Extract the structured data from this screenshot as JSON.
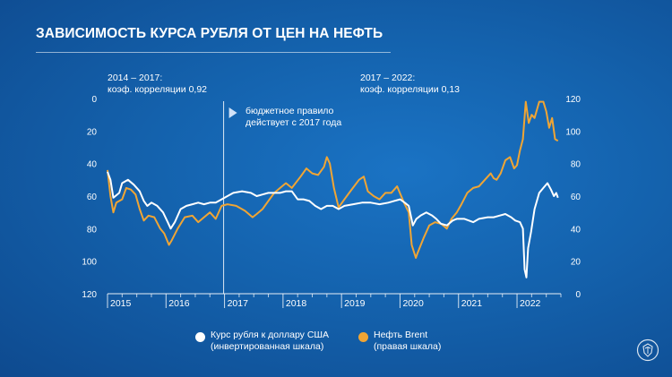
{
  "title": "ЗАВИСИМОСТЬ КУРСА РУБЛЯ ОТ ЦЕН НА НЕФТЬ",
  "annotations": {
    "left_period": "2014 – 2017:",
    "left_corr": "коэф. корреляции 0,92",
    "right_period": "2017 – 2022:",
    "right_corr": "коэф. корреляции 0,13",
    "rule_line1": "бюджетное правило",
    "rule_line2": "действует с 2017 года"
  },
  "legend": {
    "series1_line1": "Курс рубля к доллару США",
    "series1_line2": "(инвертированная шкала)",
    "series2_line1": "Нефть Brent",
    "series2_line2": "(правая шкала)"
  },
  "colors": {
    "usdrub": "#ffffff",
    "brent": "#f0a534",
    "background": "#1462ad"
  },
  "chart_data": {
    "type": "line",
    "title": "ЗАВИСИМОСТЬ КУРСА РУБЛЯ ОТ ЦЕН НА НЕФТЬ",
    "x_tick_labels": [
      "2015",
      "2016",
      "2017",
      "2018",
      "2019",
      "2020",
      "2021",
      "2022"
    ],
    "x_range": [
      2015.0,
      2022.75
    ],
    "left_axis": {
      "ylim": [
        0,
        120
      ],
      "inverted": true,
      "ticks": [
        "0",
        "20",
        "40",
        "60",
        "80",
        "100",
        "120"
      ]
    },
    "right_axis": {
      "ylim": [
        0,
        120
      ],
      "inverted": false,
      "ticks": [
        "0",
        "20",
        "40",
        "60",
        "80",
        "100",
        "120"
      ]
    },
    "vertical_marker_x": 2017.0,
    "grid": false,
    "legend_position": "bottom",
    "series": [
      {
        "name": "Курс рубля к доллару США",
        "axis": "left",
        "points": [
          [
            2015.0,
            45
          ],
          [
            2015.05,
            50
          ],
          [
            2015.1,
            61
          ],
          [
            2015.2,
            58
          ],
          [
            2015.25,
            52
          ],
          [
            2015.35,
            50
          ],
          [
            2015.45,
            53
          ],
          [
            2015.55,
            57
          ],
          [
            2015.62,
            63
          ],
          [
            2015.68,
            66
          ],
          [
            2015.75,
            64
          ],
          [
            2015.85,
            66
          ],
          [
            2015.95,
            70
          ],
          [
            2016.03,
            76
          ],
          [
            2016.08,
            80
          ],
          [
            2016.15,
            76
          ],
          [
            2016.25,
            68
          ],
          [
            2016.35,
            66
          ],
          [
            2016.45,
            65
          ],
          [
            2016.55,
            64
          ],
          [
            2016.65,
            65
          ],
          [
            2016.75,
            64
          ],
          [
            2016.85,
            64
          ],
          [
            2016.95,
            62
          ],
          [
            2017.05,
            60
          ],
          [
            2017.15,
            58
          ],
          [
            2017.3,
            57
          ],
          [
            2017.45,
            58
          ],
          [
            2017.55,
            60
          ],
          [
            2017.65,
            59
          ],
          [
            2017.75,
            58
          ],
          [
            2017.85,
            58
          ],
          [
            2017.95,
            58
          ],
          [
            2018.05,
            57
          ],
          [
            2018.15,
            57
          ],
          [
            2018.25,
            62
          ],
          [
            2018.35,
            62
          ],
          [
            2018.45,
            63
          ],
          [
            2018.55,
            66
          ],
          [
            2018.65,
            68
          ],
          [
            2018.75,
            66
          ],
          [
            2018.85,
            66
          ],
          [
            2018.95,
            68
          ],
          [
            2019.05,
            66
          ],
          [
            2019.2,
            65
          ],
          [
            2019.35,
            64
          ],
          [
            2019.5,
            64
          ],
          [
            2019.65,
            65
          ],
          [
            2019.8,
            64
          ],
          [
            2019.9,
            63
          ],
          [
            2020.0,
            62
          ],
          [
            2020.08,
            64
          ],
          [
            2020.15,
            66
          ],
          [
            2020.22,
            78
          ],
          [
            2020.28,
            74
          ],
          [
            2020.35,
            72
          ],
          [
            2020.45,
            70
          ],
          [
            2020.55,
            72
          ],
          [
            2020.62,
            74
          ],
          [
            2020.7,
            77
          ],
          [
            2020.8,
            78
          ],
          [
            2020.9,
            75
          ],
          [
            2020.97,
            74
          ],
          [
            2021.1,
            74
          ],
          [
            2021.25,
            76
          ],
          [
            2021.35,
            74
          ],
          [
            2021.5,
            73
          ],
          [
            2021.6,
            73
          ],
          [
            2021.7,
            72
          ],
          [
            2021.8,
            71
          ],
          [
            2021.9,
            73
          ],
          [
            2021.97,
            75
          ],
          [
            2022.05,
            76
          ],
          [
            2022.1,
            80
          ],
          [
            2022.13,
            105
          ],
          [
            2022.16,
            110
          ],
          [
            2022.19,
            92
          ],
          [
            2022.24,
            82
          ],
          [
            2022.3,
            68
          ],
          [
            2022.38,
            58
          ],
          [
            2022.45,
            55
          ],
          [
            2022.52,
            52
          ],
          [
            2022.58,
            56
          ],
          [
            2022.63,
            60
          ],
          [
            2022.67,
            58
          ],
          [
            2022.7,
            61
          ]
        ]
      },
      {
        "name": "Нефть Brent",
        "axis": "right",
        "points": [
          [
            2015.0,
            76
          ],
          [
            2015.05,
            60
          ],
          [
            2015.1,
            50
          ],
          [
            2015.15,
            56
          ],
          [
            2015.25,
            58
          ],
          [
            2015.32,
            65
          ],
          [
            2015.4,
            64
          ],
          [
            2015.48,
            61
          ],
          [
            2015.55,
            52
          ],
          [
            2015.62,
            45
          ],
          [
            2015.7,
            48
          ],
          [
            2015.8,
            47
          ],
          [
            2015.9,
            40
          ],
          [
            2015.97,
            37
          ],
          [
            2016.05,
            30
          ],
          [
            2016.1,
            33
          ],
          [
            2016.2,
            40
          ],
          [
            2016.32,
            47
          ],
          [
            2016.45,
            48
          ],
          [
            2016.55,
            44
          ],
          [
            2016.65,
            47
          ],
          [
            2016.75,
            50
          ],
          [
            2016.85,
            46
          ],
          [
            2016.95,
            54
          ],
          [
            2017.05,
            55
          ],
          [
            2017.2,
            54
          ],
          [
            2017.35,
            51
          ],
          [
            2017.48,
            47
          ],
          [
            2017.55,
            49
          ],
          [
            2017.65,
            52
          ],
          [
            2017.75,
            57
          ],
          [
            2017.85,
            62
          ],
          [
            2017.95,
            65
          ],
          [
            2018.05,
            68
          ],
          [
            2018.15,
            65
          ],
          [
            2018.3,
            72
          ],
          [
            2018.4,
            77
          ],
          [
            2018.5,
            74
          ],
          [
            2018.6,
            73
          ],
          [
            2018.7,
            78
          ],
          [
            2018.75,
            84
          ],
          [
            2018.8,
            80
          ],
          [
            2018.87,
            65
          ],
          [
            2018.95,
            53
          ],
          [
            2019.05,
            58
          ],
          [
            2019.15,
            63
          ],
          [
            2019.3,
            70
          ],
          [
            2019.38,
            72
          ],
          [
            2019.45,
            63
          ],
          [
            2019.55,
            60
          ],
          [
            2019.65,
            58
          ],
          [
            2019.75,
            62
          ],
          [
            2019.85,
            62
          ],
          [
            2019.95,
            66
          ],
          [
            2020.02,
            60
          ],
          [
            2020.08,
            55
          ],
          [
            2020.15,
            50
          ],
          [
            2020.2,
            30
          ],
          [
            2020.27,
            22
          ],
          [
            2020.3,
            25
          ],
          [
            2020.4,
            34
          ],
          [
            2020.5,
            42
          ],
          [
            2020.6,
            44
          ],
          [
            2020.7,
            43
          ],
          [
            2020.8,
            40
          ],
          [
            2020.88,
            46
          ],
          [
            2020.97,
            50
          ],
          [
            2021.05,
            55
          ],
          [
            2021.15,
            62
          ],
          [
            2021.25,
            65
          ],
          [
            2021.35,
            66
          ],
          [
            2021.45,
            70
          ],
          [
            2021.55,
            74
          ],
          [
            2021.6,
            71
          ],
          [
            2021.65,
            70
          ],
          [
            2021.72,
            74
          ],
          [
            2021.8,
            82
          ],
          [
            2021.88,
            84
          ],
          [
            2021.95,
            77
          ],
          [
            2022.0,
            79
          ],
          [
            2022.05,
            88
          ],
          [
            2022.1,
            95
          ],
          [
            2022.15,
            118
          ],
          [
            2022.2,
            105
          ],
          [
            2022.25,
            110
          ],
          [
            2022.3,
            108
          ],
          [
            2022.38,
            118
          ],
          [
            2022.45,
            118
          ],
          [
            2022.5,
            112
          ],
          [
            2022.55,
            102
          ],
          [
            2022.6,
            108
          ],
          [
            2022.65,
            95
          ],
          [
            2022.7,
            94
          ]
        ]
      }
    ]
  }
}
